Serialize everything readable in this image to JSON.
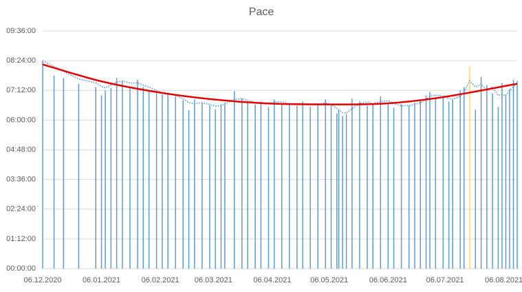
{
  "chart_data": {
    "type": "bar",
    "title": "Pace",
    "x": [
      "06.12.2020",
      "12.12.2020",
      "17.12.2020",
      "25.12.2020",
      "03.01.2021",
      "06.01.2021",
      "08.01.2021",
      "11.01.2021",
      "14.01.2021",
      "17.01.2021",
      "21.01.2021",
      "25.01.2021",
      "28.01.2021",
      "31.01.2021",
      "04.02.2021",
      "07.02.2021",
      "10.02.2021",
      "14.02.2021",
      "18.02.2021",
      "21.02.2021",
      "24.02.2021",
      "28.02.2021",
      "04.03.2021",
      "07.03.2021",
      "10.03.2021",
      "12.03.2021",
      "17.03.2021",
      "21.03.2021",
      "24.03.2021",
      "28.03.2021",
      "31.03.2021",
      "04.04.2021",
      "07.04.2021",
      "11.04.2021",
      "15.04.2021",
      "19.04.2021",
      "22.04.2021",
      "26.04.2021",
      "30.04.2021",
      "04.05.2021",
      "07.05.2021",
      "10.05.2021",
      "11.05.2021",
      "13.05.2021",
      "15.05.2021",
      "18.05.2021",
      "22.05.2021",
      "26.05.2021",
      "29.05.2021",
      "02.06.2021",
      "06.06.2021",
      "09.06.2021",
      "13.06.2021",
      "17.06.2021",
      "20.06.2021",
      "23.06.2021",
      "26.06.2021",
      "28.06.2021",
      "01.07.2021",
      "05.07.2021",
      "08.07.2021",
      "10.07.2021",
      "14.07.2021",
      "16.07.2021",
      "19.07.2021",
      "22.07.2021",
      "25.07.2021",
      "28.07.2021",
      "31.07.2021",
      "03.08.2021",
      "05.08.2021",
      "07.08.2021",
      "09.08.2021",
      "11.08.2021",
      "13.08.2021"
    ],
    "values": [
      504,
      468,
      462,
      448,
      440,
      420,
      432,
      438,
      462,
      455,
      437,
      458,
      440,
      432,
      425,
      422,
      426,
      418,
      408,
      384,
      410,
      402,
      396,
      386,
      398,
      402,
      430,
      412,
      405,
      398,
      405,
      392,
      410,
      398,
      400,
      395,
      405,
      392,
      398,
      410,
      395,
      376,
      385,
      370,
      375,
      412,
      405,
      395,
      400,
      418,
      402,
      390,
      398,
      395,
      402,
      408,
      420,
      428,
      415,
      418,
      405,
      410,
      432,
      440,
      491,
      385,
      465,
      445,
      425,
      392,
      450,
      420,
      435,
      458,
      455
    ],
    "color": "#5b9bd5",
    "highlight_index": 64,
    "highlight_color": "#ffd966",
    "moving_average": {
      "color": "#5b9bd5",
      "values": [
        504,
        490,
        478,
        460,
        450,
        442,
        438,
        445,
        452,
        455,
        450,
        450,
        445,
        440,
        432,
        425,
        424,
        420,
        412,
        402,
        400,
        402,
        398,
        394,
        395,
        400,
        410,
        412,
        408,
        402,
        400,
        400,
        404,
        404,
        400,
        400,
        400,
        398,
        398,
        402,
        398,
        388,
        385,
        378,
        377,
        388,
        400,
        404,
        400,
        405,
        407,
        400,
        395,
        395,
        398,
        402,
        410,
        418,
        420,
        418,
        412,
        410,
        418,
        428,
        455,
        440,
        447,
        432,
        440,
        420,
        422,
        420,
        432,
        440,
        450
      ]
    },
    "trend": {
      "color": "#e00000",
      "x": [
        "06.12.2020",
        "05.01.2021",
        "04.02.2021",
        "06.03.2021",
        "05.04.2021",
        "05.05.2021",
        "04.06.2021",
        "04.07.2021",
        "13.08.2021"
      ],
      "values": [
        495,
        455,
        428,
        410,
        400,
        398,
        400,
        415,
        448
      ]
    },
    "xlim": [
      "06.12.2020",
      "13.08.2021"
    ],
    "xticks": [
      "06.12.2020",
      "06.01.2021",
      "06.02.2021",
      "06.03.2021",
      "06.04.2021",
      "06.05.2021",
      "06.06.2021",
      "06.07.2021",
      "06.08.2021"
    ],
    "ylim": [
      0,
      576
    ],
    "yticks": [
      {
        "value": 0,
        "label": "00:00:00"
      },
      {
        "value": 72,
        "label": "01:12:00"
      },
      {
        "value": 144,
        "label": "02:24:00"
      },
      {
        "value": 216,
        "label": "03:36:00"
      },
      {
        "value": 288,
        "label": "04:48:00"
      },
      {
        "value": 360,
        "label": "06:00:00"
      },
      {
        "value": 432,
        "label": "07:12:00"
      },
      {
        "value": 504,
        "label": "08:24:00"
      },
      {
        "value": 576,
        "label": "09:36:00"
      }
    ],
    "grid": true
  }
}
